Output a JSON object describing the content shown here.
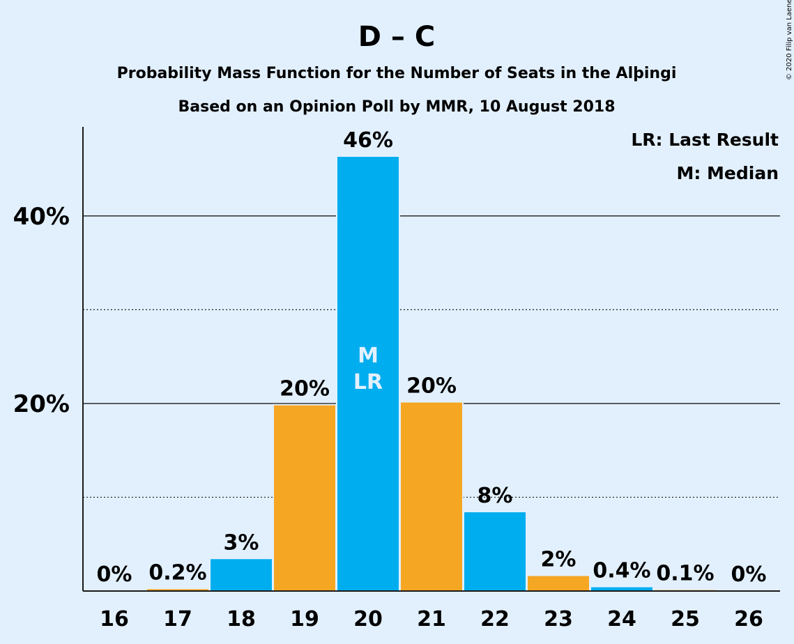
{
  "chart_data": {
    "type": "bar",
    "title": "D – C",
    "subtitle1": "Probability Mass Function for the Number of Seats in the Alþingi",
    "subtitle2": "Based on an Opinion Poll by MMR, 10 August 2018",
    "copyright": "© 2020 Filip van Laenen",
    "categories": [
      "16",
      "17",
      "18",
      "19",
      "20",
      "21",
      "22",
      "23",
      "24",
      "25",
      "26"
    ],
    "values": [
      0,
      0.2,
      3.4,
      19.8,
      46.3,
      20.1,
      8.4,
      1.6,
      0.4,
      0.1,
      0
    ],
    "data_labels": [
      "0%",
      "0.2%",
      "3%",
      "20%",
      "46%",
      "20%",
      "8%",
      "2%",
      "0.4%",
      "0.1%",
      "0%"
    ],
    "bar_colors": [
      "#00aeef",
      "#f5a623",
      "#00aeef",
      "#f5a623",
      "#00aeef",
      "#f5a623",
      "#00aeef",
      "#f5a623",
      "#00aeef",
      "#f5a623",
      "#00aeef"
    ],
    "median_index": 4,
    "last_result_index": 4,
    "median_marker": "M",
    "last_result_marker": "LR",
    "ylim": [
      0,
      50
    ],
    "yticks": [
      {
        "value": 20,
        "label": "20%",
        "style": "solid"
      },
      {
        "value": 40,
        "label": "40%",
        "style": "solid"
      }
    ],
    "minor_gridlines": [
      10,
      30
    ],
    "grid": true,
    "legend": [
      "LR: Last Result",
      "M: Median"
    ],
    "legend_position": "top-right",
    "xlabel": "",
    "ylabel": ""
  }
}
